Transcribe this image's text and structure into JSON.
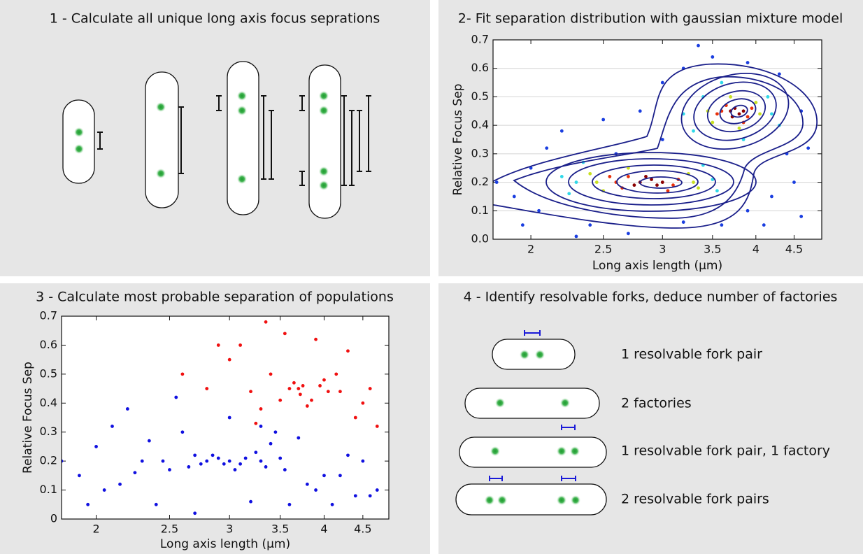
{
  "panels": {
    "step1": {
      "title": "1 - Calculate  all unique long axis focus seprations"
    },
    "step4": {
      "title": "4 - Identify resolvable forks, deduce number of factories",
      "items": [
        "1 resolvable fork pair",
        "2 factories",
        "1 resolvable fork pair, 1 factory",
        "2 resolvable fork pairs"
      ]
    }
  },
  "chart_data": [
    {
      "type": "scatter",
      "title": "2- Fit separation distribution with gaussian mixture model",
      "xlabel": "Long axis length (µm)",
      "ylabel": "Relative Focus Sep",
      "xscale": "log",
      "xlim": [
        1.78,
        4.9
      ],
      "ylim": [
        0,
        0.7
      ],
      "xticks": [
        2,
        2.5,
        3,
        3.5,
        4,
        4.5
      ],
      "yticks": [
        {
          "value": 0,
          "label": "0.0"
        },
        0.1,
        0.2,
        0.3,
        0.4,
        0.5,
        0.6,
        0.7
      ],
      "grid": true,
      "series": [
        {
          "color": "#1a3ee0",
          "x": [
            1.8,
            1.9,
            2.0,
            2.05,
            2.1,
            1.95,
            2.2,
            2.4,
            2.6,
            2.7,
            3.0,
            3.2,
            3.6,
            3.9,
            4.2,
            4.5,
            4.6,
            4.4,
            4.6,
            4.3,
            3.9,
            3.5,
            3.2,
            3.0,
            2.8,
            2.5,
            4.7,
            3.35,
            4.1,
            2.3
          ],
          "y": [
            0.2,
            0.15,
            0.25,
            0.1,
            0.32,
            0.05,
            0.38,
            0.05,
            0.3,
            0.02,
            0.35,
            0.06,
            0.05,
            0.1,
            0.15,
            0.2,
            0.08,
            0.3,
            0.45,
            0.58,
            0.62,
            0.64,
            0.6,
            0.55,
            0.45,
            0.42,
            0.32,
            0.68,
            0.05,
            0.01
          ]
        },
        {
          "color": "#30d8e8",
          "x": [
            2.3,
            2.25,
            3.5,
            3.55,
            2.35,
            3.4,
            2.2,
            3.3,
            4.2,
            3.6,
            3.85,
            3.4,
            4.15,
            3.2,
            4.3
          ],
          "y": [
            0.2,
            0.16,
            0.21,
            0.17,
            0.27,
            0.26,
            0.22,
            0.38,
            0.44,
            0.55,
            0.35,
            0.5,
            0.5,
            0.44,
            0.4
          ]
        },
        {
          "color": "#c8e020",
          "x": [
            2.45,
            2.5,
            3.3,
            3.35,
            2.4,
            3.25,
            2.7,
            3.45,
            4.05,
            3.7,
            3.8,
            3.5,
            4.0
          ],
          "y": [
            0.2,
            0.17,
            0.2,
            0.18,
            0.23,
            0.23,
            0.25,
            0.45,
            0.44,
            0.5,
            0.39,
            0.41,
            0.48
          ]
        },
        {
          "color": "#e8300a",
          "x": [
            2.6,
            2.65,
            2.7,
            3.1,
            3.15,
            2.55,
            3.05,
            3.6,
            3.9,
            3.95,
            3.65,
            3.55,
            3.85
          ],
          "y": [
            0.2,
            0.18,
            0.22,
            0.19,
            0.21,
            0.22,
            0.17,
            0.45,
            0.43,
            0.46,
            0.47,
            0.44,
            0.41
          ]
        },
        {
          "color": "#8b0000",
          "x": [
            2.8,
            2.9,
            2.95,
            2.75,
            3.0,
            2.85,
            3.7,
            3.8,
            3.75,
            3.85,
            3.72
          ],
          "y": [
            0.2,
            0.21,
            0.19,
            0.19,
            0.2,
            0.22,
            0.45,
            0.44,
            0.46,
            0.45,
            0.43
          ]
        }
      ]
    },
    {
      "type": "scatter",
      "title": "3 - Calculate most probable separation of populations",
      "xlabel": "Long axis length (µm)",
      "ylabel": "Relative Focus Sep",
      "xscale": "log",
      "xlim": [
        1.8,
        4.87
      ],
      "ylim": [
        0,
        0.7
      ],
      "xticks": [
        2,
        2.5,
        3,
        3.5,
        4,
        4.5
      ],
      "yticks": [
        0,
        0.1,
        0.2,
        0.3,
        0.4,
        0.5,
        0.6,
        0.7
      ],
      "grid": false,
      "series": [
        {
          "color": "#1010e0",
          "x": [
            1.8,
            1.9,
            2.0,
            2.05,
            2.1,
            1.95,
            2.2,
            2.3,
            2.25,
            2.4,
            2.45,
            2.5,
            2.6,
            2.65,
            2.7,
            2.75,
            2.8,
            2.85,
            2.9,
            2.95,
            3.0,
            3.05,
            3.1,
            3.15,
            3.2,
            3.25,
            3.3,
            3.35,
            3.4,
            3.5,
            3.55,
            3.6,
            3.7,
            3.8,
            3.9,
            4.0,
            4.1,
            4.2,
            4.3,
            4.4,
            4.5,
            4.6,
            2.55,
            2.35,
            3.45,
            2.7,
            3.0,
            3.3,
            2.15,
            4.7
          ],
          "y": [
            0.2,
            0.15,
            0.25,
            0.1,
            0.32,
            0.05,
            0.38,
            0.2,
            0.16,
            0.05,
            0.2,
            0.17,
            0.3,
            0.18,
            0.22,
            0.19,
            0.2,
            0.22,
            0.21,
            0.19,
            0.2,
            0.17,
            0.19,
            0.21,
            0.06,
            0.23,
            0.2,
            0.18,
            0.26,
            0.21,
            0.17,
            0.05,
            0.28,
            0.12,
            0.1,
            0.15,
            0.05,
            0.15,
            0.22,
            0.08,
            0.2,
            0.08,
            0.42,
            0.27,
            0.3,
            0.02,
            0.35,
            0.32,
            0.12,
            0.1
          ]
        },
        {
          "color": "#f01010",
          "x": [
            3.0,
            3.1,
            3.2,
            3.3,
            3.35,
            3.4,
            3.5,
            3.55,
            3.6,
            3.65,
            3.7,
            3.72,
            3.75,
            3.8,
            3.85,
            3.9,
            3.95,
            4.0,
            4.05,
            4.15,
            4.2,
            4.3,
            4.4,
            4.5,
            4.6,
            4.7,
            2.6,
            2.8,
            2.9,
            3.25
          ],
          "y": [
            0.55,
            0.6,
            0.44,
            0.38,
            0.68,
            0.5,
            0.41,
            0.64,
            0.45,
            0.47,
            0.45,
            0.43,
            0.46,
            0.39,
            0.41,
            0.62,
            0.46,
            0.48,
            0.44,
            0.5,
            0.44,
            0.58,
            0.35,
            0.4,
            0.45,
            0.32,
            0.5,
            0.45,
            0.6,
            0.33
          ]
        }
      ]
    }
  ]
}
